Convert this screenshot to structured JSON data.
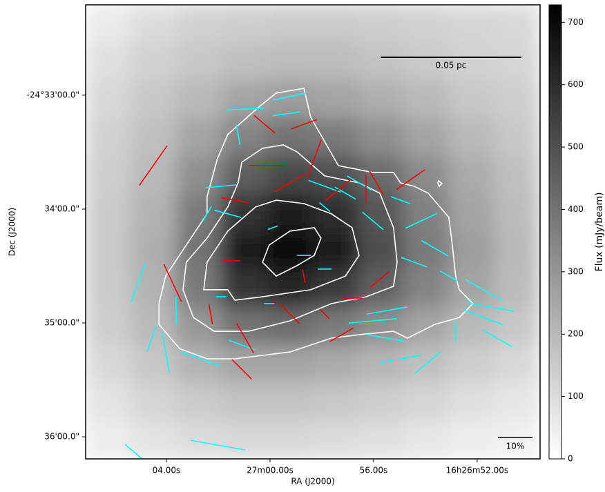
{
  "chart_data": {
    "type": "polarization-map",
    "xlabel": "RA (J2000)",
    "ylabel": "Dec (J2000)",
    "xlim": [
      7.12,
      -10.43
    ],
    "ylim": [
      47.6,
      -191.6
    ],
    "xticks": [
      {
        "value": 4,
        "label": "04.00s"
      },
      {
        "value": 0,
        "label": "27m00.00s"
      },
      {
        "value": -4,
        "label": "56.00s"
      },
      {
        "value": -8,
        "label": "16h26m52.00s"
      }
    ],
    "yticks": [
      {
        "value": 0,
        "label": "-24°33'00.0\""
      },
      {
        "value": -60,
        "label": "34'00.0\""
      },
      {
        "value": -120,
        "label": "35'00.0\""
      },
      {
        "value": -180,
        "label": "36'00.0\""
      }
    ],
    "colorbar": {
      "label": "Flux (mJy/beam)",
      "lim": [
        0,
        728
      ],
      "ticks": [
        0,
        100,
        200,
        300,
        400,
        500,
        600,
        700
      ]
    },
    "image": {
      "values": [
        [
          60,
          100,
          130,
          140,
          150,
          150,
          140,
          130,
          120,
          110
        ],
        [
          90,
          130,
          160,
          180,
          190,
          190,
          170,
          150,
          130,
          120
        ],
        [
          110,
          160,
          200,
          260,
          280,
          260,
          230,
          200,
          160,
          140
        ],
        [
          130,
          180,
          260,
          350,
          400,
          380,
          320,
          260,
          200,
          160
        ],
        [
          140,
          200,
          320,
          460,
          520,
          500,
          420,
          330,
          240,
          180
        ],
        [
          150,
          220,
          380,
          580,
          650,
          600,
          480,
          360,
          260,
          190
        ],
        [
          150,
          230,
          400,
          640,
          700,
          640,
          500,
          380,
          280,
          200
        ],
        [
          150,
          220,
          380,
          580,
          620,
          560,
          450,
          350,
          260,
          190
        ],
        [
          140,
          200,
          300,
          400,
          420,
          380,
          320,
          260,
          200,
          160
        ],
        [
          110,
          160,
          220,
          260,
          260,
          240,
          210,
          180,
          140,
          110
        ],
        [
          80,
          120,
          150,
          170,
          170,
          160,
          140,
          120,
          90,
          70
        ],
        [
          50,
          80,
          100,
          110,
          110,
          100,
          90,
          70,
          50,
          40
        ]
      ]
    },
    "contours": [
      {
        "x": [
          4.29,
          4.03,
          3.23,
          2.43,
          2.43,
          2.03,
          1.63,
          0.43,
          -0.24,
          -1.31,
          -1.57,
          -2.11,
          -2.64,
          -3.97,
          -4.77,
          -5.04,
          -5.57,
          -6.11,
          -6.91,
          -7.04,
          -7.17,
          -7.31,
          -7.84,
          -7.31,
          -6.37,
          -5.31,
          -4.77,
          -3.44,
          -2.37,
          -0.77,
          1.36,
          2.43,
          3.49,
          4.29
        ],
        "y": [
          -109.8,
          -95.3,
          -78.9,
          -62.5,
          -53.5,
          -33.5,
          -20.7,
          -6.2,
          1.1,
          3.6,
          -11.6,
          -24.4,
          -37.1,
          -40.7,
          -40.7,
          -46.2,
          -48.0,
          -51.6,
          -64.4,
          -78.9,
          -95.3,
          -102.5,
          -109.8,
          -117.1,
          -120.7,
          -128.0,
          -124.4,
          -126.2,
          -128.0,
          -135.3,
          -138.9,
          -138.9,
          -133.5,
          -120.7
        ]
      },
      {
        "x": [
          3.36,
          3.23,
          2.43,
          1.63,
          1.23,
          1.09,
          0.29,
          -0.51,
          -1.04,
          -2.11,
          -3.44,
          -4.24,
          -4.77,
          -4.91,
          -4.77,
          -3.71,
          -2.37,
          -0.77,
          0.83,
          2.16,
          2.96
        ],
        "y": [
          -102.5,
          -88.0,
          -75.3,
          -58.9,
          -46.2,
          -35.3,
          -28.0,
          -26.2,
          -29.8,
          -42.5,
          -46.2,
          -51.6,
          -69.8,
          -88.0,
          -100.7,
          -106.2,
          -109.8,
          -118.9,
          -124.4,
          -124.4,
          -117.1
        ]
      },
      {
        "x": [
          2.56,
          2.43,
          1.63,
          0.56,
          -0.24,
          -1.31,
          -2.37,
          -3.17,
          -3.44,
          -2.91,
          -1.57,
          0.29,
          1.36,
          1.63
        ],
        "y": [
          -102.5,
          -88.0,
          -71.6,
          -58.9,
          -55.3,
          -57.1,
          -62.5,
          -69.8,
          -84.4,
          -95.3,
          -102.5,
          -106.2,
          -108.0,
          -102.5
        ]
      },
      {
        "x": [
          0.29,
          0.03,
          -0.77,
          -1.71,
          -1.97,
          -1.71,
          -1.04,
          -0.24
        ],
        "y": [
          -88.0,
          -78.9,
          -71.6,
          -69.8,
          -75.3,
          -84.4,
          -89.8,
          -95.3
        ]
      },
      {
        "x": [
          -6.51,
          -6.64,
          -6.53,
          -6.48
        ],
        "y": [
          -45.1,
          -46.5,
          -48.0,
          -46.2
        ]
      }
    ],
    "vectors": [
      {
        "color": "#00ffff",
        "x": [
          0.96,
          -0.77,
          -0.64,
          1.23,
          1.89,
          1.63,
          -0.11,
          -2.11,
          -2.91,
          -3.97,
          -5.84,
          -6.37,
          -5.57,
          -8.24,
          -8.51,
          -8.24,
          -4.51,
          -3.97,
          -4.51,
          -5.04,
          -6.11,
          -8.77,
          -1.31,
          -2.11,
          0.03,
          1.89,
          2.69,
          4.03,
          5.09,
          3.63,
          2.43,
          1.09,
          2.0,
          5.09,
          -2.11,
          -3.44,
          -5.04,
          -6.91,
          -7.17,
          4.56
        ],
        "y": [
          -7.3,
          -0.7,
          -9.8,
          -20.7,
          -48.0,
          -62.5,
          -69.8,
          -58.9,
          -51.6,
          -66.2,
          -66.2,
          -80.7,
          -88.0,
          -102.5,
          -111.6,
          -117.1,
          -113.5,
          -118.9,
          -128.0,
          -138.9,
          -140.7,
          -128.0,
          -84.4,
          -91.6,
          -109.8,
          -106.2,
          -138.9,
          -135.3,
          -98.9,
          -113.5,
          -62.5,
          -131.6,
          -184.4,
          -189.8,
          -48.0,
          -46.2,
          -55.3,
          -95.3,
          -124.4,
          -128.0
        ],
        "length": [
          11,
          10,
          8,
          6,
          9,
          8,
          3,
          4,
          7,
          8,
          10,
          9,
          8,
          12,
          14,
          12,
          12,
          14,
          12,
          12,
          10,
          10,
          4,
          4,
          3,
          3,
          12,
          12,
          12,
          8,
          5,
          8,
          16,
          10,
          10,
          8,
          6,
          6,
          6,
          8
        ],
        "angle": [
          3,
          12,
          8,
          -80,
          5,
          -15,
          20,
          -40,
          -30,
          -40,
          25,
          -30,
          -20,
          -30,
          -10,
          -20,
          10,
          5,
          -10,
          10,
          40,
          -30,
          0,
          0,
          0,
          0,
          -20,
          -80,
          70,
          90,
          60,
          -20,
          -10,
          -40,
          -20,
          -30,
          -20,
          -30,
          90,
          70
        ]
      },
      {
        "color": "#ff0000",
        "x": [
          4.51,
          0.21,
          -1.31,
          0.16,
          -0.77,
          1.36,
          -1.71,
          -2.64,
          -3.71,
          -4.11,
          -5.44,
          3.76,
          1.49,
          2.29,
          0.96,
          1.09,
          -0.77,
          -2.77,
          -2.11,
          -4.24,
          -1.31,
          -3.17
        ],
        "y": [
          -37.1,
          -15.3,
          -15.3,
          -37.1,
          -46.2,
          -55.3,
          -33.5,
          -49.8,
          -49.8,
          -46.2,
          -44.4,
          -98.9,
          -87.3,
          -115.3,
          -128.0,
          -144.4,
          -115.3,
          -126.2,
          -115.3,
          -97.1,
          -95.3,
          -106.9
        ],
        "length": [
          14,
          8,
          8,
          10,
          10,
          8,
          12,
          10,
          8,
          8,
          10,
          12,
          5,
          6,
          10,
          8,
          8,
          8,
          4,
          7,
          4,
          6
        ],
        "angle": [
          55,
          -40,
          20,
          0,
          30,
          -10,
          70,
          40,
          90,
          -60,
          35,
          -65,
          0,
          -80,
          -60,
          -45,
          -45,
          30,
          -45,
          40,
          -80,
          0
        ]
      }
    ],
    "scale_bar": {
      "label": "0.05 pc"
    },
    "vector_key": {
      "value": 10,
      "label": "10%"
    }
  }
}
